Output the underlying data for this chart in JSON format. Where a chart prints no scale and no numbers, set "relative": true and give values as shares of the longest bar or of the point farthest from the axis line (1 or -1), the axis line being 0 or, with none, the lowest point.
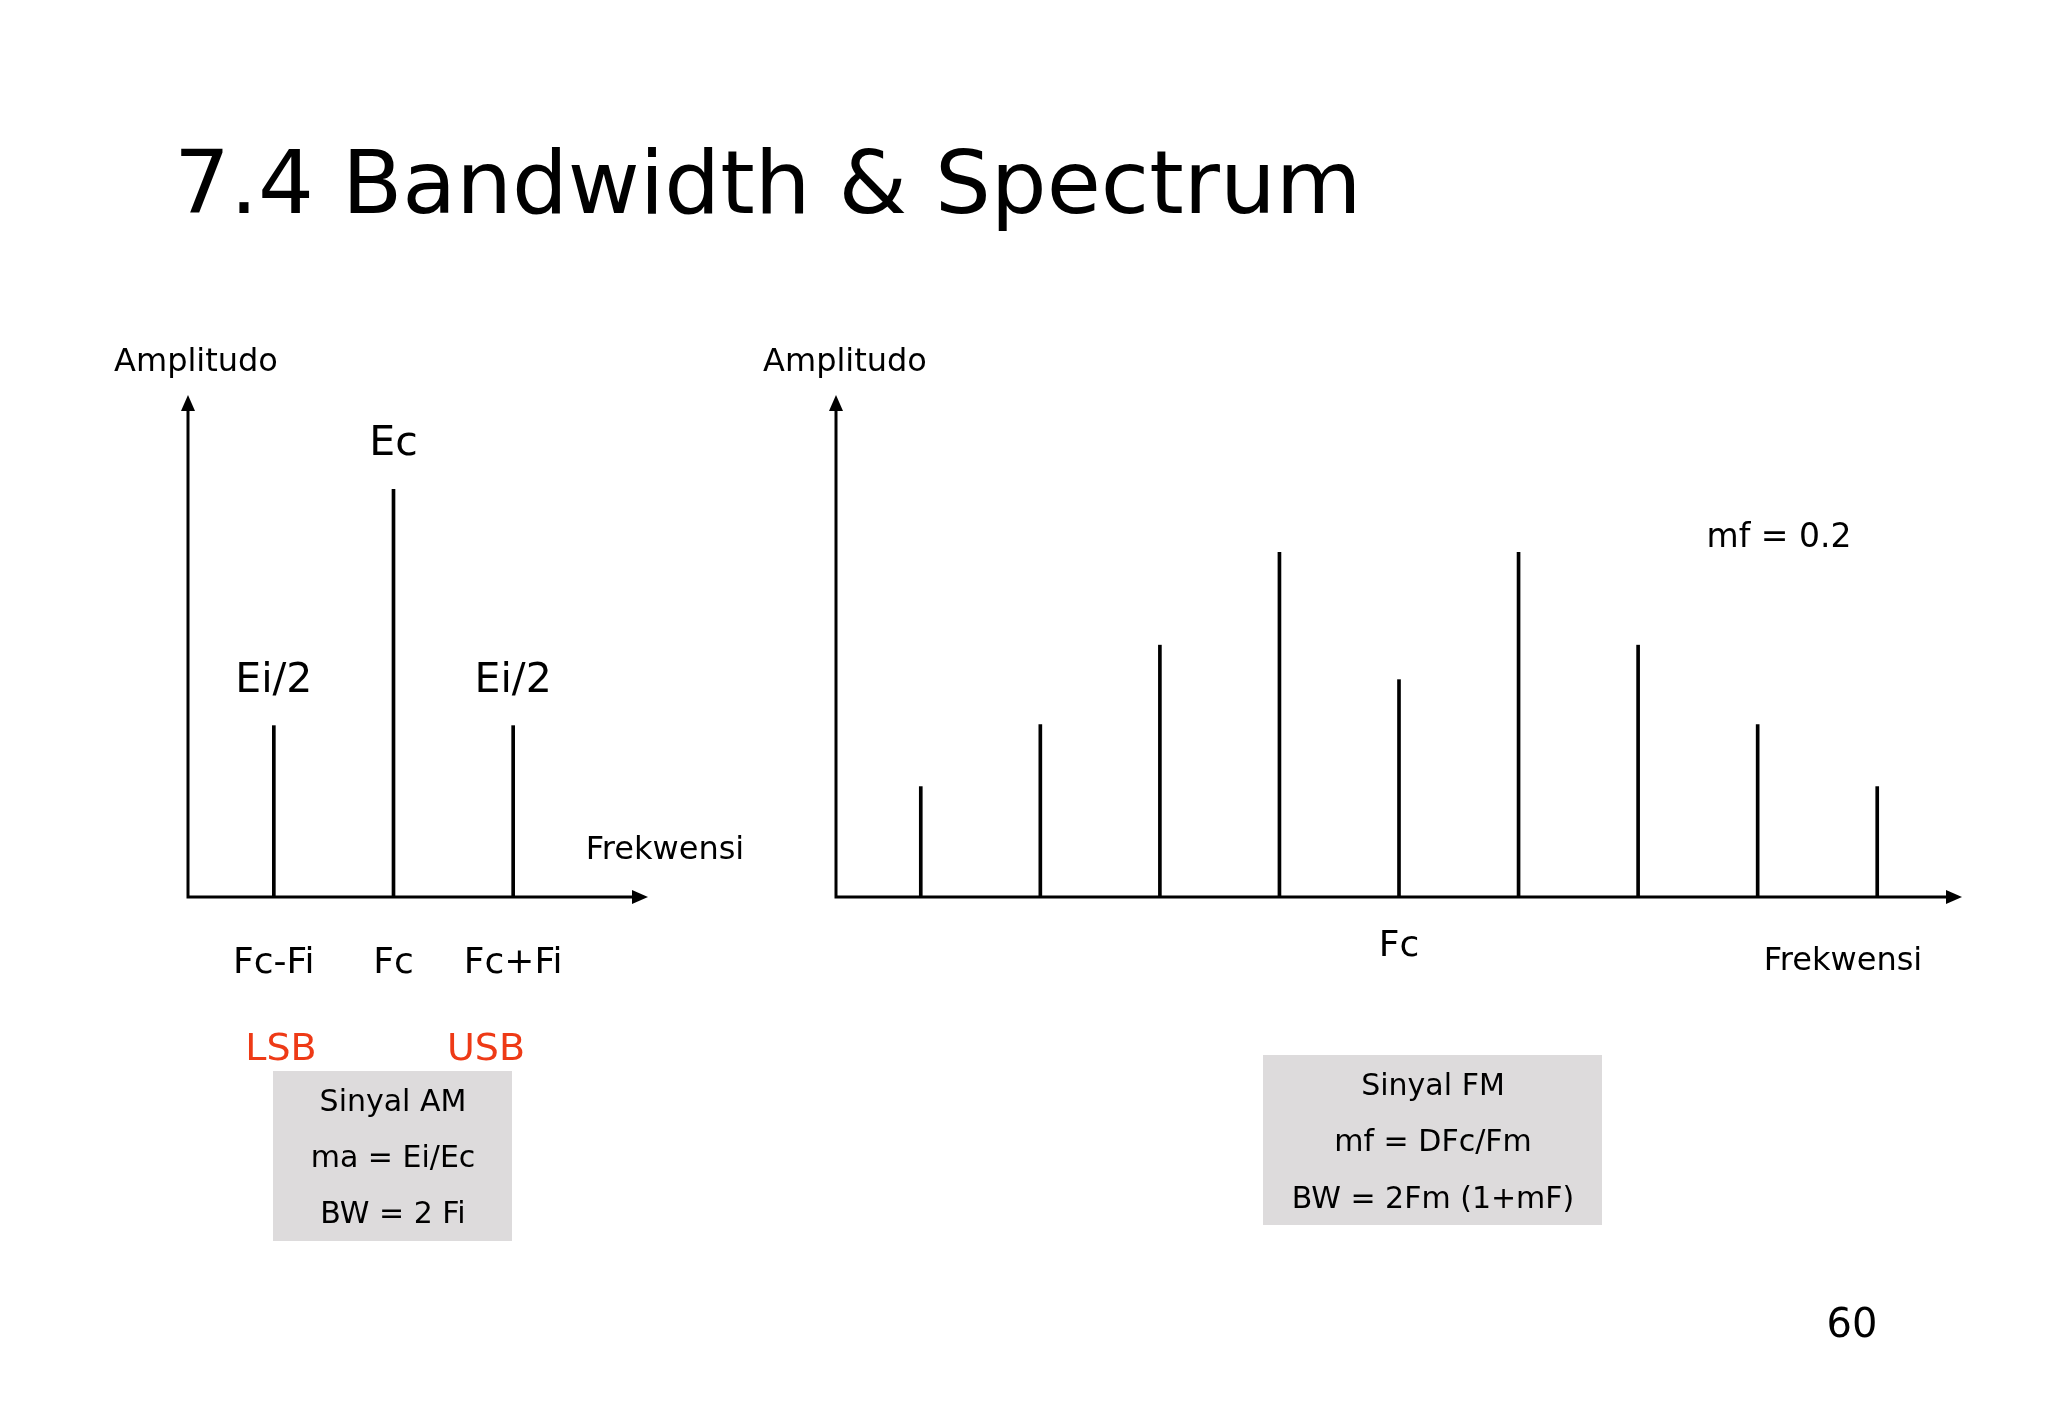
{
  "chart_data": [
    {
      "type": "bar",
      "title": "7.4 Bandwidth & Spectrum",
      "xlabel": "Frekwensi",
      "ylabel": "Amplitudo",
      "categories": [
        "Fc-Fi",
        "Fc",
        "Fc+Fi"
      ],
      "values": [
        0.42,
        1,
        0.42
      ],
      "color": "#000000",
      "relative": true,
      "annotations": [
        {
          "text": "Ei/2",
          "x": "Fc-Fi",
          "y": 0.42
        },
        {
          "text": "Ec",
          "x": "Fc",
          "y": 1
        },
        {
          "text": "Ei/2",
          "x": "Fc+Fi",
          "y": 0.42
        },
        "LSB",
        "USB",
        "Sinyal AM",
        "ma = Ei/Ec",
        "BW = 2 Fi"
      ]
    },
    {
      "type": "bar",
      "xlabel": "Frekwensi",
      "ylabel": "Amplitudo",
      "categories": [
        null,
        null,
        null,
        null,
        "Fc",
        null,
        null,
        null,
        null
      ],
      "values": [
        0.32,
        0.5,
        0.73,
        1,
        0.63,
        1,
        0.73,
        0.5,
        0.32
      ],
      "color": "#000000",
      "relative": true,
      "annotations": [
        "mf = 0.2",
        "Sinyal FM",
        "mf = DFc/Fm",
        "BW = 2Fm (1+mF)",
        "60"
      ]
    }
  ]
}
